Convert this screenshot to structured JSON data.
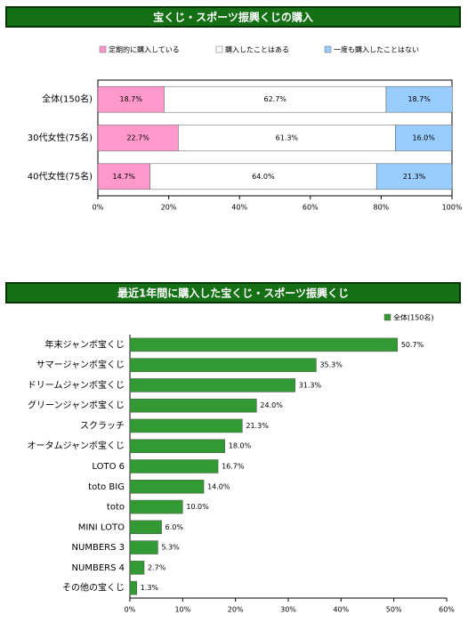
{
  "chart_data": [
    {
      "type": "stacked-bar",
      "orientation": "horizontal",
      "title": "宝くじ・スポーツ振興くじの購入",
      "categories": [
        "全体(150名)",
        "30代女性(75名)",
        "40代女性(75名)"
      ],
      "series": [
        {
          "name": "定期的に購入している",
          "color": "#ff99cc",
          "values": [
            18.7,
            22.7,
            14.7
          ],
          "value_labels": [
            "18.7%",
            "22.7%",
            "14.7%"
          ]
        },
        {
          "name": "購入したことはある",
          "color": "#ffffff",
          "values": [
            62.7,
            61.3,
            64.0
          ],
          "value_labels": [
            "62.7%",
            "61.3%",
            "64.0%"
          ]
        },
        {
          "name": "一度も購入したことはない",
          "color": "#99ccff",
          "values": [
            18.7,
            16.0,
            21.3
          ],
          "value_labels": [
            "18.7%",
            "16.0%",
            "21.3%"
          ]
        }
      ],
      "xlim": [
        0,
        100
      ],
      "xticks": [
        {
          "value": 0,
          "label": "0%"
        },
        {
          "value": 20,
          "label": "20%"
        },
        {
          "value": 40,
          "label": "40%"
        },
        {
          "value": 60,
          "label": "60%"
        },
        {
          "value": 80,
          "label": "80%"
        },
        {
          "value": 100,
          "label": "100%"
        }
      ],
      "legend": "top"
    },
    {
      "type": "bar",
      "orientation": "horizontal",
      "title": "最近1年間に購入した宝くじ・スポーツ振興くじ",
      "categories": [
        "年末ジャンボ宝くじ",
        "サマージャンボ宝くじ",
        "ドリームジャンボ宝くじ",
        "グリーンジャンボ宝くじ",
        "スクラッチ",
        "オータムジャンボ宝くじ",
        "LOTO 6",
        "toto BIG",
        "toto",
        "MINI LOTO",
        "NUMBERS 3",
        "NUMBERS 4",
        "その他の宝くじ"
      ],
      "series": [
        {
          "name": "全体(150名)",
          "color": "#339933",
          "values": [
            50.7,
            35.3,
            31.3,
            24.0,
            21.3,
            18.0,
            16.7,
            14.0,
            10.0,
            6.0,
            5.3,
            2.7,
            1.3
          ],
          "value_labels": [
            "50.7%",
            "35.3%",
            "31.3%",
            "24.0%",
            "21.3%",
            "18.0%",
            "16.7%",
            "14.0%",
            "10.0%",
            "6.0%",
            "5.3%",
            "2.7%",
            "1.3%"
          ]
        }
      ],
      "xlim": [
        0,
        60
      ],
      "xticks": [
        {
          "value": 0,
          "label": "0%"
        },
        {
          "value": 10,
          "label": "10%"
        },
        {
          "value": 20,
          "label": "20%"
        },
        {
          "value": 30,
          "label": "30%"
        },
        {
          "value": 40,
          "label": "40%"
        },
        {
          "value": 50,
          "label": "50%"
        },
        {
          "value": 60,
          "label": "60%"
        }
      ],
      "legend": "top-right"
    }
  ]
}
